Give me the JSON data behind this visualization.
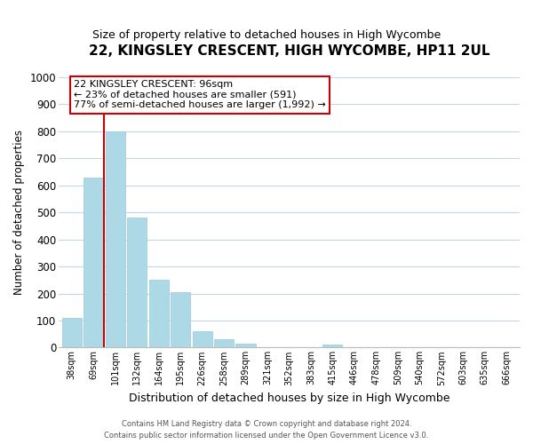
{
  "title": "22, KINGSLEY CRESCENT, HIGH WYCOMBE, HP11 2UL",
  "subtitle": "Size of property relative to detached houses in High Wycombe",
  "xlabel": "Distribution of detached houses by size in High Wycombe",
  "ylabel": "Number of detached properties",
  "bar_labels": [
    "38sqm",
    "69sqm",
    "101sqm",
    "132sqm",
    "164sqm",
    "195sqm",
    "226sqm",
    "258sqm",
    "289sqm",
    "321sqm",
    "352sqm",
    "383sqm",
    "415sqm",
    "446sqm",
    "478sqm",
    "509sqm",
    "540sqm",
    "572sqm",
    "603sqm",
    "635sqm",
    "666sqm"
  ],
  "bar_values": [
    110,
    630,
    800,
    480,
    250,
    205,
    60,
    30,
    15,
    0,
    0,
    0,
    10,
    0,
    0,
    0,
    0,
    0,
    0,
    0,
    0
  ],
  "bar_color": "#add8e6",
  "bar_edge_color": "#a0cfe0",
  "marker_line_color": "#cc0000",
  "annotation_text": "22 KINGSLEY CRESCENT: 96sqm\n← 23% of detached houses are smaller (591)\n77% of semi-detached houses are larger (1,992) →",
  "annotation_box_color": "#ffffff",
  "annotation_box_edge": "#cc0000",
  "ylim": [
    0,
    1000
  ],
  "yticks": [
    0,
    100,
    200,
    300,
    400,
    500,
    600,
    700,
    800,
    900,
    1000
  ],
  "footer_line1": "Contains HM Land Registry data © Crown copyright and database right 2024.",
  "footer_line2": "Contains public sector information licensed under the Open Government Licence v3.0.",
  "bg_color": "#ffffff",
  "grid_color": "#c8d4e8",
  "title_fontsize": 11,
  "subtitle_fontsize": 9,
  "ylabel_fontsize": 8.5,
  "xlabel_fontsize": 9
}
